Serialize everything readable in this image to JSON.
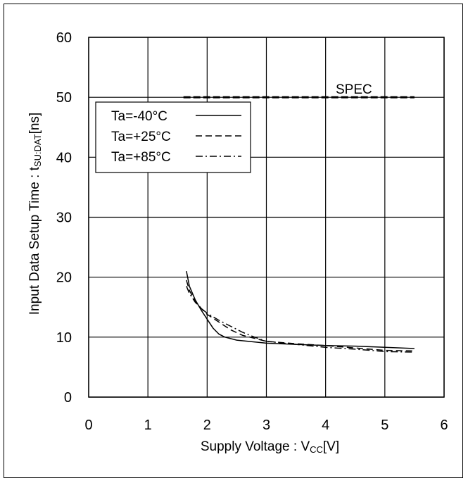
{
  "chart_data": {
    "type": "line",
    "title": "",
    "xlabel": "Supply Voltage : V",
    "xlabel_sub": "CC",
    "xlabel_unit": "[V]",
    "ylabel": "Input Data Setup Time : t",
    "ylabel_sub": "SU:DAT",
    "ylabel_unit": "[ns]",
    "xlim": [
      0,
      6
    ],
    "ylim": [
      0,
      60
    ],
    "x_ticks": [
      "0",
      "1",
      "2",
      "3",
      "4",
      "5",
      "6"
    ],
    "y_ticks": [
      "0",
      "10",
      "20",
      "30",
      "40",
      "50",
      "60"
    ],
    "grid": true,
    "legend_position": "top-left",
    "spec": {
      "label": "SPEC",
      "value": 50,
      "x_range": [
        1.6,
        5.5
      ]
    },
    "series": [
      {
        "name": "Ta=-40°C",
        "style": "solid",
        "x": [
          1.65,
          1.7,
          1.8,
          1.9,
          2.0,
          2.1,
          2.2,
          2.3,
          2.5,
          3.0,
          3.5,
          4.0,
          4.5,
          5.0,
          5.5
        ],
        "y": [
          21,
          18.5,
          16.2,
          14.5,
          13.0,
          11.5,
          10.5,
          10.0,
          9.5,
          9.0,
          8.8,
          8.6,
          8.5,
          8.3,
          8.1
        ]
      },
      {
        "name": "Ta=+25°C",
        "style": "dashed",
        "x": [
          1.65,
          1.7,
          1.8,
          1.9,
          2.0,
          2.2,
          2.4,
          2.6,
          2.8,
          3.0,
          3.5,
          4.0,
          4.5,
          5.0,
          5.5
        ],
        "y": [
          19.5,
          17.8,
          16.0,
          14.8,
          13.8,
          12.5,
          11.2,
          10.3,
          9.8,
          9.3,
          8.9,
          8.6,
          8.2,
          7.8,
          7.7
        ]
      },
      {
        "name": "Ta=+85°C",
        "style": "dashdot",
        "x": [
          1.65,
          1.7,
          1.8,
          1.9,
          2.0,
          2.2,
          2.4,
          2.6,
          2.8,
          3.0,
          3.5,
          4.0,
          4.5,
          5.0,
          5.5
        ],
        "y": [
          18.5,
          17.3,
          15.8,
          14.8,
          14.0,
          12.8,
          11.8,
          10.8,
          10.0,
          9.3,
          8.8,
          8.3,
          8.0,
          7.6,
          7.5
        ]
      }
    ]
  }
}
